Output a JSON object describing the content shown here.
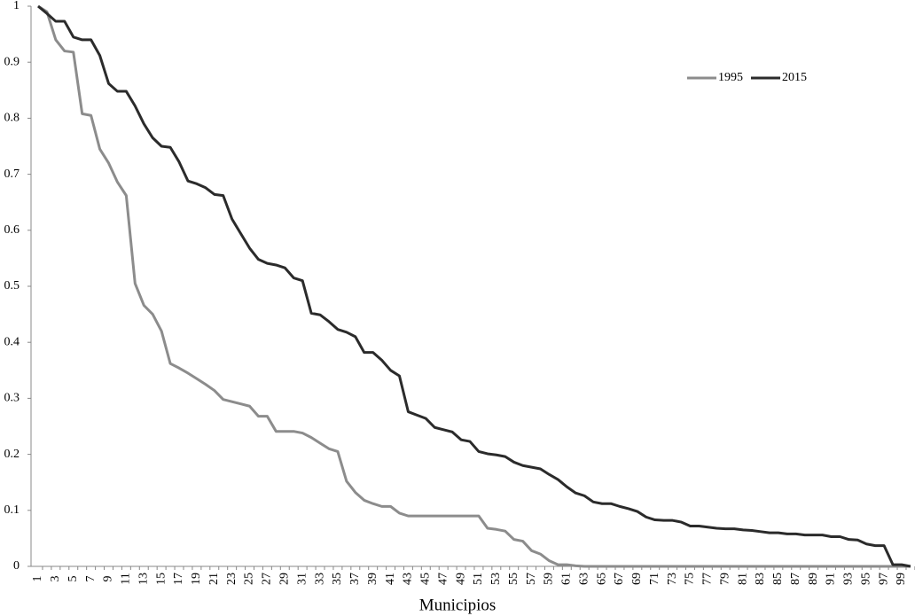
{
  "chart_data": {
    "type": "line",
    "x_label": "Municipios",
    "categories": [
      "1",
      null,
      "3",
      null,
      "5",
      null,
      "7",
      null,
      "9",
      null,
      "11",
      null,
      "13",
      null,
      "15",
      null,
      "17",
      null,
      "19",
      null,
      "21",
      null,
      "23",
      null,
      "25",
      null,
      "27",
      null,
      "29",
      null,
      "31",
      null,
      "33",
      null,
      "35",
      null,
      "37",
      null,
      "39",
      null,
      "41",
      null,
      "43",
      null,
      "45",
      null,
      "47",
      null,
      "49",
      null,
      "51",
      null,
      "53",
      null,
      "55",
      null,
      "57",
      null,
      "59",
      null,
      "61",
      null,
      "63",
      null,
      "65",
      null,
      "67",
      null,
      "69",
      null,
      "71",
      null,
      "73",
      null,
      "75",
      null,
      "77",
      null,
      "79",
      null,
      "81",
      null,
      "83",
      null,
      "85",
      null,
      "87",
      null,
      "89",
      null,
      "91",
      null,
      "93",
      null,
      "95",
      null,
      "97",
      null,
      "99",
      null
    ],
    "series": [
      {
        "name": "1995",
        "color": "#8c8c8c",
        "values": [
          1.0,
          0.99,
          0.94,
          0.92,
          0.918,
          0.808,
          0.805,
          0.745,
          0.72,
          0.686,
          0.662,
          0.505,
          0.466,
          0.45,
          0.42,
          0.362,
          0.354,
          0.345,
          0.335,
          0.325,
          0.314,
          0.298,
          0.294,
          0.29,
          0.286,
          0.268,
          0.268,
          0.241,
          0.241,
          0.241,
          0.238,
          0.23,
          0.22,
          0.21,
          0.205,
          0.152,
          0.132,
          0.118,
          0.112,
          0.107,
          0.107,
          0.095,
          0.09,
          0.09,
          0.09,
          0.09,
          0.09,
          0.09,
          0.09,
          0.09,
          0.09,
          0.068,
          0.066,
          0.063,
          0.048,
          0.045,
          0.028,
          0.022,
          0.01,
          0.003,
          0.003,
          0.001,
          0,
          0,
          0,
          0,
          0,
          0,
          0,
          0,
          0,
          0,
          0,
          0,
          0,
          0,
          0,
          0,
          0,
          0,
          0,
          0,
          0,
          0,
          0,
          0,
          0,
          0,
          0,
          0,
          0,
          0,
          0,
          0,
          0,
          0,
          0,
          0,
          0,
          0
        ]
      },
      {
        "name": "2015",
        "color": "#2b2b2b",
        "values": [
          1.0,
          0.987,
          0.973,
          0.973,
          0.945,
          0.94,
          0.94,
          0.912,
          0.862,
          0.848,
          0.848,
          0.822,
          0.79,
          0.765,
          0.75,
          0.748,
          0.722,
          0.688,
          0.683,
          0.676,
          0.664,
          0.662,
          0.62,
          0.594,
          0.568,
          0.548,
          0.541,
          0.538,
          0.533,
          0.515,
          0.51,
          0.452,
          0.449,
          0.437,
          0.423,
          0.418,
          0.41,
          0.382,
          0.382,
          0.368,
          0.35,
          0.34,
          0.276,
          0.27,
          0.264,
          0.248,
          0.244,
          0.24,
          0.226,
          0.223,
          0.205,
          0.201,
          0.199,
          0.196,
          0.186,
          0.18,
          0.177,
          0.174,
          0.164,
          0.155,
          0.142,
          0.131,
          0.126,
          0.115,
          0.112,
          0.112,
          0.107,
          0.103,
          0.098,
          0.088,
          0.083,
          0.082,
          0.082,
          0.079,
          0.072,
          0.072,
          0.07,
          0.068,
          0.067,
          0.067,
          0.065,
          0.064,
          0.062,
          0.06,
          0.06,
          0.058,
          0.058,
          0.056,
          0.056,
          0.056,
          0.053,
          0.053,
          0.048,
          0.047,
          0.04,
          0.037,
          0.037,
          0.003,
          0.003,
          0.0
        ]
      }
    ],
    "ylim": [
      0,
      1
    ],
    "yticks": [
      0,
      0.1,
      0.2,
      0.3,
      0.4,
      0.5,
      0.6,
      0.7,
      0.8,
      0.9,
      1
    ],
    "legend": "top-right"
  }
}
